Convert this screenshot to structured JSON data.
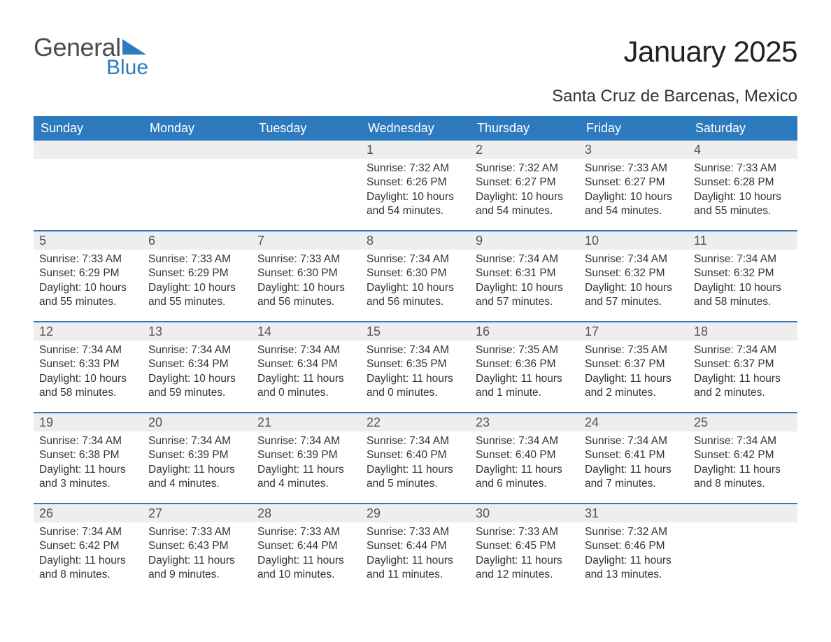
{
  "logo": {
    "word1": "General",
    "word2": "Blue"
  },
  "title": "January 2025",
  "subtitle": "Santa Cruz de Barcenas, Mexico",
  "colors": {
    "header_bg": "#2e7abf",
    "header_text": "#ffffff",
    "daynum_bg": "#eeeeee",
    "daynum_text": "#555555",
    "body_text": "#333333",
    "rule": "#2e7abf",
    "logo_gray": "#4d4d4d",
    "logo_blue": "#2e7abf",
    "page_bg": "#ffffff"
  },
  "day_headers": [
    "Sunday",
    "Monday",
    "Tuesday",
    "Wednesday",
    "Thursday",
    "Friday",
    "Saturday"
  ],
  "typography": {
    "title_fontsize": 42,
    "subtitle_fontsize": 24,
    "header_fontsize": 18,
    "daynum_fontsize": 18,
    "body_fontsize": 15.5,
    "logo_fontsize": 36
  },
  "layout": {
    "columns": 7,
    "rows": 5
  },
  "weeks": [
    [
      {
        "num": "",
        "sunrise": "",
        "sunset": "",
        "daylight1": "",
        "daylight2": ""
      },
      {
        "num": "",
        "sunrise": "",
        "sunset": "",
        "daylight1": "",
        "daylight2": ""
      },
      {
        "num": "",
        "sunrise": "",
        "sunset": "",
        "daylight1": "",
        "daylight2": ""
      },
      {
        "num": "1",
        "sunrise": "Sunrise: 7:32 AM",
        "sunset": "Sunset: 6:26 PM",
        "daylight1": "Daylight: 10 hours",
        "daylight2": "and 54 minutes."
      },
      {
        "num": "2",
        "sunrise": "Sunrise: 7:32 AM",
        "sunset": "Sunset: 6:27 PM",
        "daylight1": "Daylight: 10 hours",
        "daylight2": "and 54 minutes."
      },
      {
        "num": "3",
        "sunrise": "Sunrise: 7:33 AM",
        "sunset": "Sunset: 6:27 PM",
        "daylight1": "Daylight: 10 hours",
        "daylight2": "and 54 minutes."
      },
      {
        "num": "4",
        "sunrise": "Sunrise: 7:33 AM",
        "sunset": "Sunset: 6:28 PM",
        "daylight1": "Daylight: 10 hours",
        "daylight2": "and 55 minutes."
      }
    ],
    [
      {
        "num": "5",
        "sunrise": "Sunrise: 7:33 AM",
        "sunset": "Sunset: 6:29 PM",
        "daylight1": "Daylight: 10 hours",
        "daylight2": "and 55 minutes."
      },
      {
        "num": "6",
        "sunrise": "Sunrise: 7:33 AM",
        "sunset": "Sunset: 6:29 PM",
        "daylight1": "Daylight: 10 hours",
        "daylight2": "and 55 minutes."
      },
      {
        "num": "7",
        "sunrise": "Sunrise: 7:33 AM",
        "sunset": "Sunset: 6:30 PM",
        "daylight1": "Daylight: 10 hours",
        "daylight2": "and 56 minutes."
      },
      {
        "num": "8",
        "sunrise": "Sunrise: 7:34 AM",
        "sunset": "Sunset: 6:30 PM",
        "daylight1": "Daylight: 10 hours",
        "daylight2": "and 56 minutes."
      },
      {
        "num": "9",
        "sunrise": "Sunrise: 7:34 AM",
        "sunset": "Sunset: 6:31 PM",
        "daylight1": "Daylight: 10 hours",
        "daylight2": "and 57 minutes."
      },
      {
        "num": "10",
        "sunrise": "Sunrise: 7:34 AM",
        "sunset": "Sunset: 6:32 PM",
        "daylight1": "Daylight: 10 hours",
        "daylight2": "and 57 minutes."
      },
      {
        "num": "11",
        "sunrise": "Sunrise: 7:34 AM",
        "sunset": "Sunset: 6:32 PM",
        "daylight1": "Daylight: 10 hours",
        "daylight2": "and 58 minutes."
      }
    ],
    [
      {
        "num": "12",
        "sunrise": "Sunrise: 7:34 AM",
        "sunset": "Sunset: 6:33 PM",
        "daylight1": "Daylight: 10 hours",
        "daylight2": "and 58 minutes."
      },
      {
        "num": "13",
        "sunrise": "Sunrise: 7:34 AM",
        "sunset": "Sunset: 6:34 PM",
        "daylight1": "Daylight: 10 hours",
        "daylight2": "and 59 minutes."
      },
      {
        "num": "14",
        "sunrise": "Sunrise: 7:34 AM",
        "sunset": "Sunset: 6:34 PM",
        "daylight1": "Daylight: 11 hours",
        "daylight2": "and 0 minutes."
      },
      {
        "num": "15",
        "sunrise": "Sunrise: 7:34 AM",
        "sunset": "Sunset: 6:35 PM",
        "daylight1": "Daylight: 11 hours",
        "daylight2": "and 0 minutes."
      },
      {
        "num": "16",
        "sunrise": "Sunrise: 7:35 AM",
        "sunset": "Sunset: 6:36 PM",
        "daylight1": "Daylight: 11 hours",
        "daylight2": "and 1 minute."
      },
      {
        "num": "17",
        "sunrise": "Sunrise: 7:35 AM",
        "sunset": "Sunset: 6:37 PM",
        "daylight1": "Daylight: 11 hours",
        "daylight2": "and 2 minutes."
      },
      {
        "num": "18",
        "sunrise": "Sunrise: 7:34 AM",
        "sunset": "Sunset: 6:37 PM",
        "daylight1": "Daylight: 11 hours",
        "daylight2": "and 2 minutes."
      }
    ],
    [
      {
        "num": "19",
        "sunrise": "Sunrise: 7:34 AM",
        "sunset": "Sunset: 6:38 PM",
        "daylight1": "Daylight: 11 hours",
        "daylight2": "and 3 minutes."
      },
      {
        "num": "20",
        "sunrise": "Sunrise: 7:34 AM",
        "sunset": "Sunset: 6:39 PM",
        "daylight1": "Daylight: 11 hours",
        "daylight2": "and 4 minutes."
      },
      {
        "num": "21",
        "sunrise": "Sunrise: 7:34 AM",
        "sunset": "Sunset: 6:39 PM",
        "daylight1": "Daylight: 11 hours",
        "daylight2": "and 4 minutes."
      },
      {
        "num": "22",
        "sunrise": "Sunrise: 7:34 AM",
        "sunset": "Sunset: 6:40 PM",
        "daylight1": "Daylight: 11 hours",
        "daylight2": "and 5 minutes."
      },
      {
        "num": "23",
        "sunrise": "Sunrise: 7:34 AM",
        "sunset": "Sunset: 6:40 PM",
        "daylight1": "Daylight: 11 hours",
        "daylight2": "and 6 minutes."
      },
      {
        "num": "24",
        "sunrise": "Sunrise: 7:34 AM",
        "sunset": "Sunset: 6:41 PM",
        "daylight1": "Daylight: 11 hours",
        "daylight2": "and 7 minutes."
      },
      {
        "num": "25",
        "sunrise": "Sunrise: 7:34 AM",
        "sunset": "Sunset: 6:42 PM",
        "daylight1": "Daylight: 11 hours",
        "daylight2": "and 8 minutes."
      }
    ],
    [
      {
        "num": "26",
        "sunrise": "Sunrise: 7:34 AM",
        "sunset": "Sunset: 6:42 PM",
        "daylight1": "Daylight: 11 hours",
        "daylight2": "and 8 minutes."
      },
      {
        "num": "27",
        "sunrise": "Sunrise: 7:33 AM",
        "sunset": "Sunset: 6:43 PM",
        "daylight1": "Daylight: 11 hours",
        "daylight2": "and 9 minutes."
      },
      {
        "num": "28",
        "sunrise": "Sunrise: 7:33 AM",
        "sunset": "Sunset: 6:44 PM",
        "daylight1": "Daylight: 11 hours",
        "daylight2": "and 10 minutes."
      },
      {
        "num": "29",
        "sunrise": "Sunrise: 7:33 AM",
        "sunset": "Sunset: 6:44 PM",
        "daylight1": "Daylight: 11 hours",
        "daylight2": "and 11 minutes."
      },
      {
        "num": "30",
        "sunrise": "Sunrise: 7:33 AM",
        "sunset": "Sunset: 6:45 PM",
        "daylight1": "Daylight: 11 hours",
        "daylight2": "and 12 minutes."
      },
      {
        "num": "31",
        "sunrise": "Sunrise: 7:32 AM",
        "sunset": "Sunset: 6:46 PM",
        "daylight1": "Daylight: 11 hours",
        "daylight2": "and 13 minutes."
      },
      {
        "num": "",
        "sunrise": "",
        "sunset": "",
        "daylight1": "",
        "daylight2": ""
      }
    ]
  ]
}
